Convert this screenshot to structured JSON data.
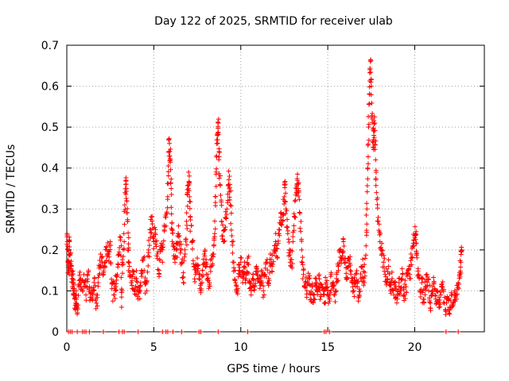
{
  "chart_data": {
    "type": "scatter",
    "title": "Day 122 of 2025, SRMTID for receiver ulab",
    "xlabel": "GPS time / hours",
    "ylabel": "SRMTID / TECUs",
    "xlim": [
      0,
      24
    ],
    "ylim": [
      0,
      0.7
    ],
    "xticks": [
      0,
      5,
      10,
      15,
      20
    ],
    "xtick_labels": [
      "0",
      "5",
      "10",
      "15",
      "20"
    ],
    "yticks": [
      0,
      0.1,
      0.2,
      0.3,
      0.4,
      0.5,
      0.6,
      0.7
    ],
    "ytick_labels": [
      "0",
      "0.1",
      "0.2",
      "0.3",
      "0.4",
      "0.5",
      "0.6",
      "0.7"
    ],
    "grid": true,
    "marker": "+",
    "series": [
      {
        "name": "SRMTID",
        "color": "#ff0000",
        "points": [
          [
            0.02,
            0.24
          ],
          [
            0.05,
            0.2
          ],
          [
            0.08,
            0.17
          ],
          [
            0.12,
            0.15
          ],
          [
            0.15,
            0.22
          ],
          [
            0.2,
            0.19
          ],
          [
            0.25,
            0.16
          ],
          [
            0.3,
            0.13
          ],
          [
            0.35,
            0.12
          ],
          [
            0.4,
            0.1
          ],
          [
            0.45,
            0.08
          ],
          [
            0.5,
            0.07
          ],
          [
            0.55,
            0.09
          ],
          [
            0.6,
            0.06
          ],
          [
            0.7,
            0.11
          ],
          [
            0.8,
            0.13
          ],
          [
            0.9,
            0.1
          ],
          [
            1.0,
            0.12
          ],
          [
            1.1,
            0.09
          ],
          [
            1.2,
            0.14
          ],
          [
            1.3,
            0.11
          ],
          [
            1.4,
            0.08
          ],
          [
            1.5,
            0.1
          ],
          [
            1.6,
            0.13
          ],
          [
            1.7,
            0.07
          ],
          [
            1.8,
            0.12
          ],
          [
            1.9,
            0.16
          ],
          [
            2.0,
            0.18
          ],
          [
            2.1,
            0.14
          ],
          [
            2.2,
            0.17
          ],
          [
            2.3,
            0.2
          ],
          [
            2.4,
            0.19
          ],
          [
            2.5,
            0.22
          ],
          [
            2.6,
            0.12
          ],
          [
            2.7,
            0.09
          ],
          [
            2.8,
            0.11
          ],
          [
            2.9,
            0.14
          ],
          [
            3.0,
            0.19
          ],
          [
            3.1,
            0.23
          ],
          [
            3.15,
            0.06
          ],
          [
            3.2,
            0.17
          ],
          [
            3.3,
            0.22
          ],
          [
            3.35,
            0.34
          ],
          [
            3.4,
            0.37
          ],
          [
            3.45,
            0.32
          ],
          [
            3.5,
            0.27
          ],
          [
            3.55,
            0.2
          ],
          [
            3.6,
            0.16
          ],
          [
            3.7,
            0.12
          ],
          [
            3.8,
            0.14
          ],
          [
            3.9,
            0.1
          ],
          [
            4.0,
            0.13
          ],
          [
            4.1,
            0.08
          ],
          [
            4.2,
            0.11
          ],
          [
            4.3,
            0.15
          ],
          [
            4.4,
            0.18
          ],
          [
            4.5,
            0.12
          ],
          [
            4.6,
            0.1
          ],
          [
            4.7,
            0.2
          ],
          [
            4.8,
            0.25
          ],
          [
            4.9,
            0.27
          ],
          [
            5.0,
            0.22
          ],
          [
            5.1,
            0.25
          ],
          [
            5.2,
            0.19
          ],
          [
            5.3,
            0.15
          ],
          [
            5.4,
            0.21
          ],
          [
            5.5,
            0.17
          ],
          [
            5.6,
            0.26
          ],
          [
            5.7,
            0.28
          ],
          [
            5.8,
            0.33
          ],
          [
            5.85,
            0.44
          ],
          [
            5.9,
            0.46
          ],
          [
            5.95,
            0.42
          ],
          [
            6.0,
            0.35
          ],
          [
            6.05,
            0.25
          ],
          [
            6.1,
            0.21
          ],
          [
            6.2,
            0.18
          ],
          [
            6.3,
            0.2
          ],
          [
            6.4,
            0.24
          ],
          [
            6.5,
            0.22
          ],
          [
            6.6,
            0.17
          ],
          [
            6.7,
            0.12
          ],
          [
            6.8,
            0.19
          ],
          [
            6.9,
            0.26
          ],
          [
            6.95,
            0.34
          ],
          [
            7.0,
            0.39
          ],
          [
            7.05,
            0.33
          ],
          [
            7.1,
            0.28
          ],
          [
            7.2,
            0.22
          ],
          [
            7.3,
            0.16
          ],
          [
            7.4,
            0.14
          ],
          [
            7.5,
            0.18
          ],
          [
            7.6,
            0.13
          ],
          [
            7.7,
            0.1
          ],
          [
            7.8,
            0.15
          ],
          [
            7.9,
            0.19
          ],
          [
            8.0,
            0.17
          ],
          [
            8.1,
            0.14
          ],
          [
            8.2,
            0.12
          ],
          [
            8.3,
            0.16
          ],
          [
            8.4,
            0.19
          ],
          [
            8.5,
            0.24
          ],
          [
            8.55,
            0.33
          ],
          [
            8.6,
            0.43
          ],
          [
            8.65,
            0.48
          ],
          [
            8.7,
            0.51
          ],
          [
            8.75,
            0.44
          ],
          [
            8.8,
            0.36
          ],
          [
            8.9,
            0.27
          ],
          [
            9.0,
            0.22
          ],
          [
            9.1,
            0.25
          ],
          [
            9.2,
            0.3
          ],
          [
            9.3,
            0.36
          ],
          [
            9.35,
            0.38
          ],
          [
            9.4,
            0.31
          ],
          [
            9.5,
            0.22
          ],
          [
            9.6,
            0.17
          ],
          [
            9.7,
            0.12
          ],
          [
            9.8,
            0.1
          ],
          [
            9.9,
            0.15
          ],
          [
            10.0,
            0.17
          ],
          [
            10.1,
            0.14
          ],
          [
            10.2,
            0.16
          ],
          [
            10.3,
            0.13
          ],
          [
            10.4,
            0.18
          ],
          [
            10.5,
            0.12
          ],
          [
            10.6,
            0.1
          ],
          [
            10.7,
            0.14
          ],
          [
            10.8,
            0.11
          ],
          [
            10.9,
            0.16
          ],
          [
            11.0,
            0.13
          ],
          [
            11.1,
            0.12
          ],
          [
            11.2,
            0.15
          ],
          [
            11.3,
            0.1
          ],
          [
            11.4,
            0.14
          ],
          [
            11.5,
            0.17
          ],
          [
            11.6,
            0.12
          ],
          [
            11.7,
            0.19
          ],
          [
            11.8,
            0.16
          ],
          [
            11.9,
            0.2
          ],
          [
            12.0,
            0.22
          ],
          [
            12.1,
            0.18
          ],
          [
            12.2,
            0.25
          ],
          [
            12.3,
            0.28
          ],
          [
            12.4,
            0.27
          ],
          [
            12.5,
            0.33
          ],
          [
            12.55,
            0.36
          ],
          [
            12.6,
            0.3
          ],
          [
            12.7,
            0.24
          ],
          [
            12.8,
            0.2
          ],
          [
            12.9,
            0.16
          ],
          [
            13.0,
            0.22
          ],
          [
            13.1,
            0.28
          ],
          [
            13.2,
            0.34
          ],
          [
            13.25,
            0.37
          ],
          [
            13.3,
            0.35
          ],
          [
            13.4,
            0.29
          ],
          [
            13.5,
            0.2
          ],
          [
            13.6,
            0.14
          ],
          [
            13.7,
            0.12
          ],
          [
            13.8,
            0.1
          ],
          [
            13.9,
            0.13
          ],
          [
            14.0,
            0.09
          ],
          [
            14.1,
            0.11
          ],
          [
            14.2,
            0.08
          ],
          [
            14.3,
            0.12
          ],
          [
            14.4,
            0.1
          ],
          [
            14.5,
            0.14
          ],
          [
            14.6,
            0.09
          ],
          [
            14.7,
            0.11
          ],
          [
            14.8,
            0.07
          ],
          [
            14.9,
            0.12
          ],
          [
            15.0,
            0.1
          ],
          [
            15.1,
            0.08
          ],
          [
            15.2,
            0.14
          ],
          [
            15.3,
            0.11
          ],
          [
            15.4,
            0.09
          ],
          [
            15.5,
            0.13
          ],
          [
            15.6,
            0.16
          ],
          [
            15.7,
            0.2
          ],
          [
            15.8,
            0.18
          ],
          [
            15.9,
            0.22
          ],
          [
            16.0,
            0.17
          ],
          [
            16.1,
            0.13
          ],
          [
            16.2,
            0.18
          ],
          [
            16.3,
            0.15
          ],
          [
            16.4,
            0.12
          ],
          [
            16.5,
            0.1
          ],
          [
            16.6,
            0.14
          ],
          [
            16.7,
            0.11
          ],
          [
            16.8,
            0.09
          ],
          [
            16.9,
            0.13
          ],
          [
            17.0,
            0.16
          ],
          [
            17.1,
            0.12
          ],
          [
            17.2,
            0.21
          ],
          [
            17.25,
            0.3
          ],
          [
            17.3,
            0.4
          ],
          [
            17.35,
            0.5
          ],
          [
            17.4,
            0.58
          ],
          [
            17.45,
            0.66
          ],
          [
            17.5,
            0.6
          ],
          [
            17.55,
            0.52
          ],
          [
            17.6,
            0.45
          ],
          [
            17.65,
            0.48
          ],
          [
            17.7,
            0.51
          ],
          [
            17.75,
            0.42
          ],
          [
            17.8,
            0.34
          ],
          [
            17.9,
            0.27
          ],
          [
            18.0,
            0.22
          ],
          [
            18.1,
            0.2
          ],
          [
            18.2,
            0.17
          ],
          [
            18.3,
            0.14
          ],
          [
            18.4,
            0.12
          ],
          [
            18.5,
            0.16
          ],
          [
            18.6,
            0.1
          ],
          [
            18.7,
            0.13
          ],
          [
            18.8,
            0.09
          ],
          [
            18.9,
            0.11
          ],
          [
            19.0,
            0.08
          ],
          [
            19.1,
            0.12
          ],
          [
            19.2,
            0.1
          ],
          [
            19.3,
            0.14
          ],
          [
            19.4,
            0.09
          ],
          [
            19.5,
            0.11
          ],
          [
            19.6,
            0.15
          ],
          [
            19.7,
            0.13
          ],
          [
            19.8,
            0.18
          ],
          [
            19.9,
            0.21
          ],
          [
            20.0,
            0.23
          ],
          [
            20.05,
            0.24
          ],
          [
            20.1,
            0.19
          ],
          [
            20.2,
            0.14
          ],
          [
            20.3,
            0.1
          ],
          [
            20.4,
            0.12
          ],
          [
            20.5,
            0.08
          ],
          [
            20.6,
            0.11
          ],
          [
            20.7,
            0.14
          ],
          [
            20.8,
            0.1
          ],
          [
            20.9,
            0.07
          ],
          [
            21.0,
            0.09
          ],
          [
            21.1,
            0.12
          ],
          [
            21.2,
            0.08
          ],
          [
            21.3,
            0.1
          ],
          [
            21.4,
            0.06
          ],
          [
            21.5,
            0.09
          ],
          [
            21.6,
            0.11
          ],
          [
            21.7,
            0.07
          ],
          [
            21.8,
            0.05
          ],
          [
            21.9,
            0.08
          ],
          [
            22.0,
            0.06
          ],
          [
            22.1,
            0.09
          ],
          [
            22.2,
            0.07
          ],
          [
            22.3,
            0.1
          ],
          [
            22.4,
            0.08
          ],
          [
            22.5,
            0.12
          ],
          [
            22.6,
            0.14
          ],
          [
            22.65,
            0.17
          ],
          [
            22.7,
            0.2
          ]
        ],
        "zero_points_x": [
          0.1,
          0.2,
          0.3,
          0.6,
          0.9,
          1.0,
          1.1,
          1.3,
          2.1,
          3.0,
          3.2,
          3.3,
          4.1,
          5.5,
          5.7,
          5.8,
          6.1,
          6.6,
          7.6,
          7.7,
          8.7,
          10.4,
          14.8,
          14.9,
          15.1,
          21.8,
          22.5
        ]
      }
    ]
  }
}
